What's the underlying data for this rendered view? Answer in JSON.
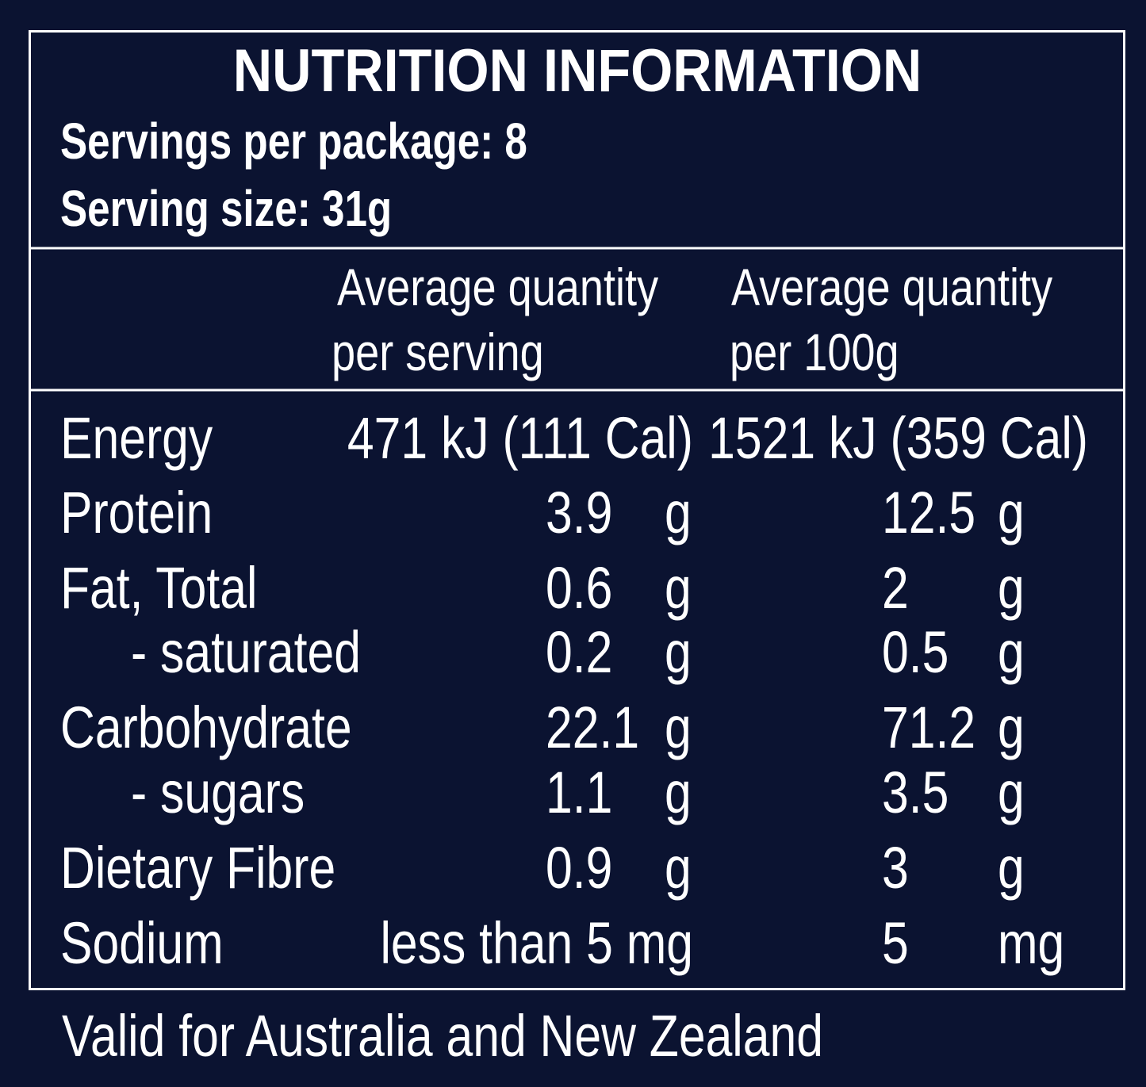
{
  "header": {
    "title": "NUTRITION INFORMATION",
    "servings": "Servings per package: 8",
    "serving_size": "Serving size: 31g"
  },
  "column_headers": [
    [
      "Average quantity",
      "per serving"
    ],
    [
      "Average quantity",
      "per 100g"
    ]
  ],
  "rows": [
    {
      "name": "Energy",
      "per_serving": "471 kJ (111 Cal)",
      "per_100g": "1521 kJ (359 Cal)"
    },
    {
      "name": "Protein",
      "per_serving": {
        "value": "3.9",
        "unit": "g"
      },
      "per_100g": {
        "value": "12.5",
        "unit": "g"
      }
    },
    {
      "name": "Fat, Total",
      "per_serving": {
        "value": "0.6",
        "unit": "g"
      },
      "per_100g": {
        "value": "2",
        "unit": "g"
      }
    },
    {
      "name": "- saturated",
      "per_serving": {
        "value": "0.2",
        "unit": "g"
      },
      "per_100g": {
        "value": "0.5",
        "unit": "g"
      }
    },
    {
      "name": "Carbohydrate",
      "per_serving": {
        "value": "22.1",
        "unit": "g"
      },
      "per_100g": {
        "value": "71.2",
        "unit": "g"
      }
    },
    {
      "name": "- sugars",
      "per_serving": {
        "value": "1.1",
        "unit": "g"
      },
      "per_100g": {
        "value": "3.5",
        "unit": "g"
      }
    },
    {
      "name": "Dietary Fibre",
      "per_serving": {
        "value": "0.9",
        "unit": "g"
      },
      "per_100g": {
        "value": "3",
        "unit": "g"
      }
    },
    {
      "name": "Sodium",
      "per_serving": "less than 5 mg",
      "per_100g": {
        "value": "5",
        "unit": "mg"
      }
    }
  ],
  "footer": "Valid for Australia and New Zealand"
}
